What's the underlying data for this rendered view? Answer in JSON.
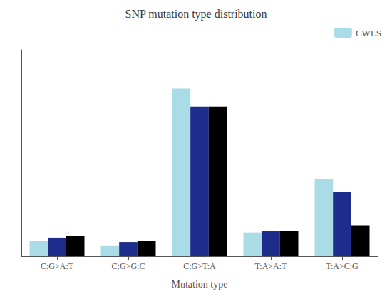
{
  "chart_data": {
    "type": "bar",
    "title": "SNP mutation type distribution",
    "xlabel": "Mutation type",
    "categories": [
      "C:G>A:T",
      "C:G>G:C",
      "C:G>T:A",
      "T:A>A:T",
      "T:A>C:G"
    ],
    "series": [
      {
        "name": "CWLS",
        "color": "#aadce8",
        "values": [
          0.058,
          0.042,
          0.65,
          0.092,
          0.3
        ]
      },
      {
        "color": "#1e2d8c",
        "values": [
          0.072,
          0.055,
          0.58,
          0.098,
          0.25
        ]
      },
      {
        "color": "#000000",
        "values": [
          0.08,
          0.06,
          0.58,
          0.098,
          0.12
        ]
      }
    ],
    "ylim": [
      0,
      0.8
    ],
    "grid": false,
    "legend": "upper right",
    "tick_labels": "x"
  }
}
